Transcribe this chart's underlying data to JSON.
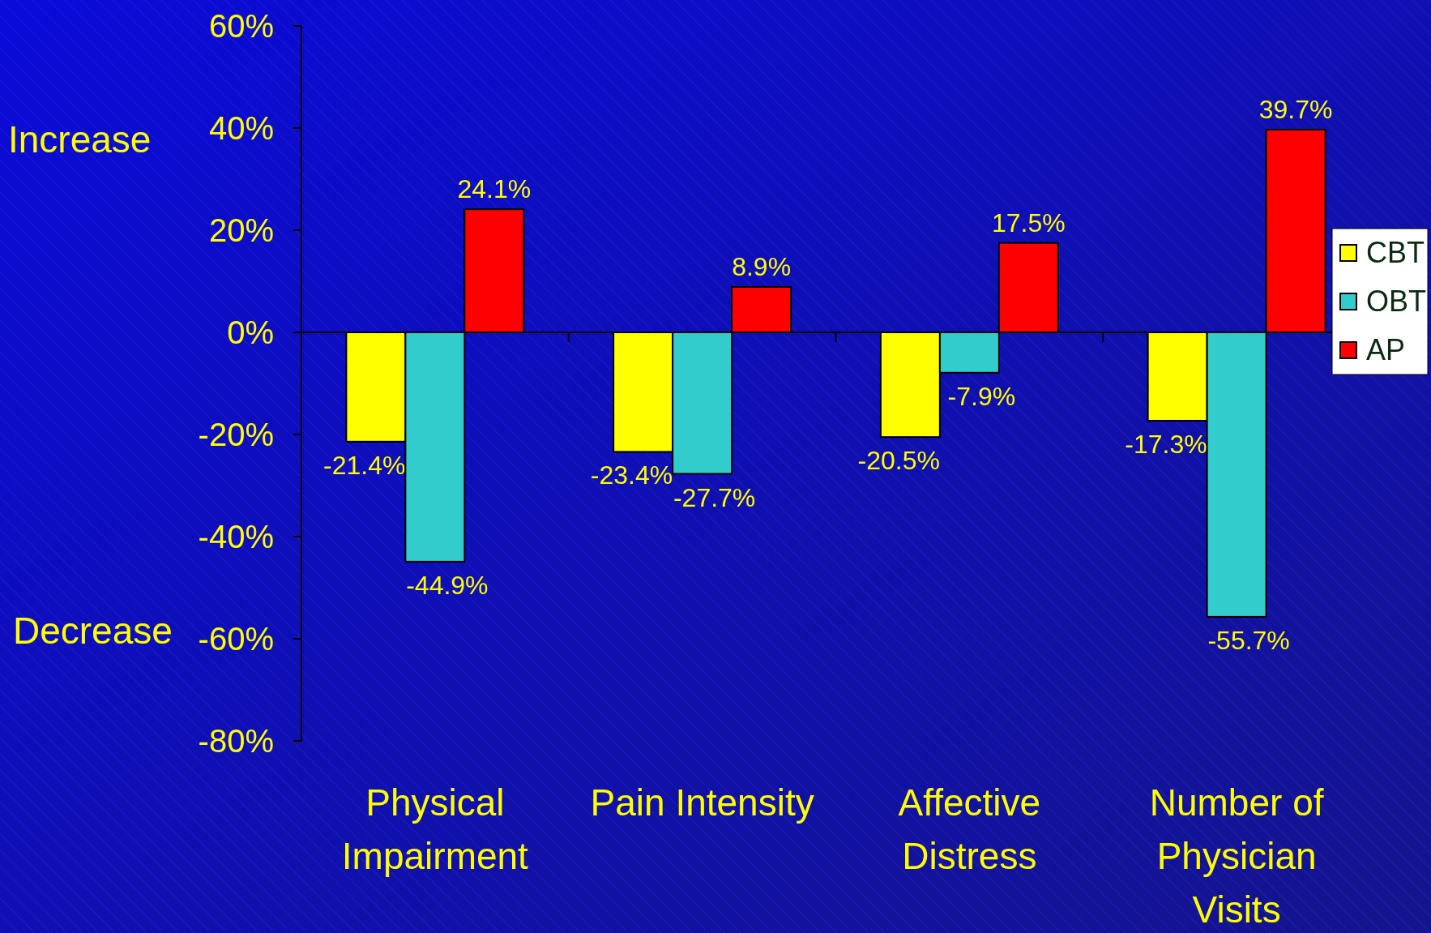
{
  "chart_data": {
    "type": "bar",
    "categories": [
      "Physical Impairment",
      "Pain Intensity",
      "Affective Distress",
      "Number of Physician Visits"
    ],
    "series": [
      {
        "name": "CBT",
        "color": "#ffff00",
        "values": [
          -21.4,
          -23.4,
          -20.5,
          -17.3
        ],
        "value_labels": [
          "-21.4%",
          "-23.4%",
          "-20.5%",
          "-17.3%"
        ]
      },
      {
        "name": "OBT",
        "color": "#33cccc",
        "values": [
          -44.9,
          -27.7,
          -7.9,
          -55.7
        ],
        "value_labels": [
          "-44.9%",
          "-27.7%",
          "-7.9%",
          "-55.7%"
        ]
      },
      {
        "name": "AP",
        "color": "#ff0000",
        "values": [
          24.1,
          8.9,
          17.5,
          39.7
        ],
        "value_labels": [
          "24.1%",
          "8.9%",
          "17.5%",
          "39.7%"
        ]
      }
    ],
    "ylim": [
      -80,
      60
    ],
    "yticks": [
      {
        "value": -80,
        "label": "-80%"
      },
      {
        "value": -60,
        "label": "-60%"
      },
      {
        "value": -40,
        "label": "-40%"
      },
      {
        "value": -20,
        "label": "-20%"
      },
      {
        "value": 0,
        "label": "0%"
      },
      {
        "value": 20,
        "label": "20%"
      },
      {
        "value": 40,
        "label": "40%"
      },
      {
        "value": 60,
        "label": "60%"
      }
    ],
    "annotations": [
      "Increase",
      "Decrease"
    ],
    "legend": "right"
  }
}
